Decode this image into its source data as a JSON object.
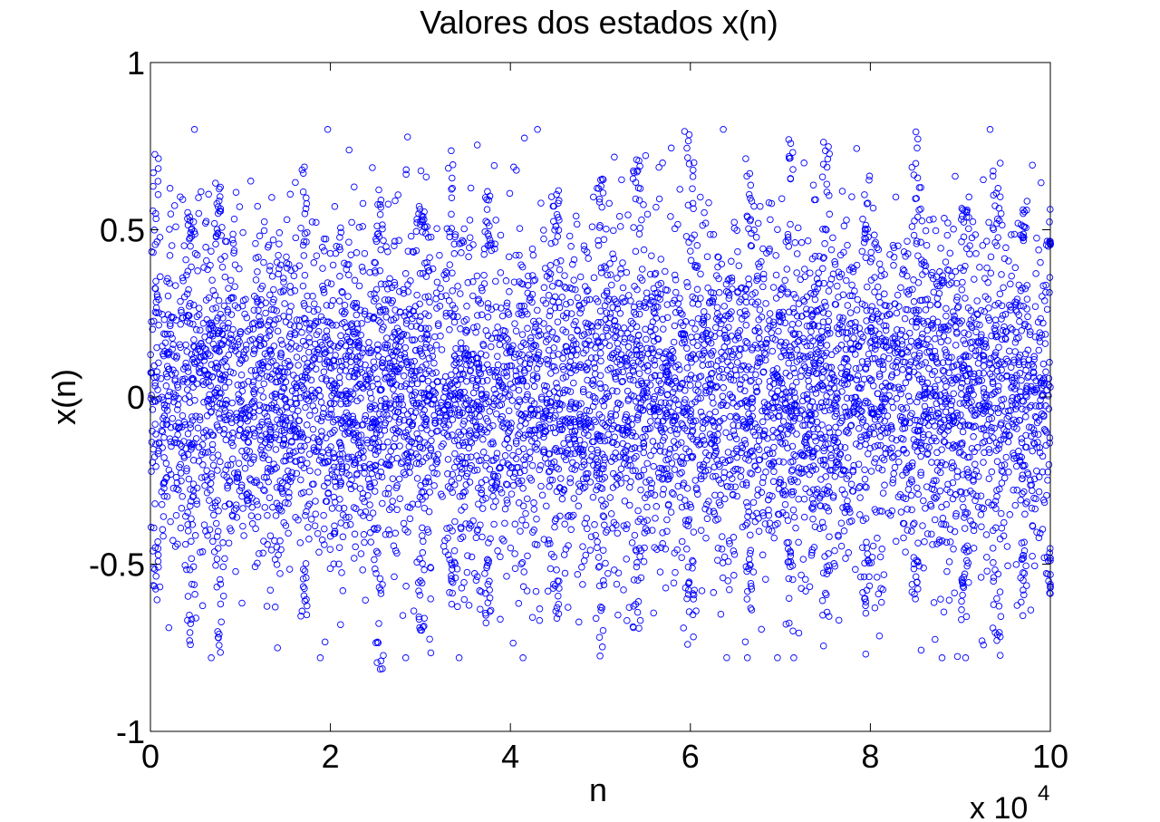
{
  "chart_data": {
    "type": "scatter",
    "title": "Valores dos estados x(n)",
    "xlabel": "n",
    "ylabel": "x(n)",
    "x_multiplier": "x 10",
    "x_multiplier_exponent": "4",
    "xlim": [
      0,
      100000
    ],
    "ylim": [
      -1,
      1
    ],
    "x_tick_labels": [
      "0",
      "2",
      "4",
      "6",
      "8",
      "10"
    ],
    "y_tick_labels": [
      "1",
      "0.5",
      "0",
      "-0.5",
      "-1"
    ],
    "marker": "circle",
    "marker_color": "#0000ff",
    "grid": false,
    "n_points": 100000,
    "approx_bulk_range": [
      -0.5,
      0.5
    ],
    "observed_extremes": {
      "x": [
        0,
        100000
      ],
      "y": [
        -0.82,
        0.83
      ]
    },
    "envelope_peaks": [
      {
        "n": 700,
        "upper": 0.73,
        "lower": -0.62
      },
      {
        "n": 4500,
        "upper": 0.55,
        "lower": -0.79
      },
      {
        "n": 7500,
        "upper": 0.65,
        "lower": -0.77
      },
      {
        "n": 17000,
        "upper": 0.69,
        "lower": -0.66
      },
      {
        "n": 25500,
        "upper": 0.62,
        "lower": -0.82
      },
      {
        "n": 30000,
        "upper": 0.58,
        "lower": -0.73
      },
      {
        "n": 33500,
        "upper": 0.74,
        "lower": -0.62
      },
      {
        "n": 37500,
        "upper": 0.64,
        "lower": -0.7
      },
      {
        "n": 45000,
        "upper": 0.62,
        "lower": -0.66
      },
      {
        "n": 50000,
        "upper": 0.66,
        "lower": -0.78
      },
      {
        "n": 54000,
        "upper": 0.72,
        "lower": -0.7
      },
      {
        "n": 60000,
        "upper": 0.79,
        "lower": -0.75
      },
      {
        "n": 66500,
        "upper": 0.68,
        "lower": -0.64
      },
      {
        "n": 71000,
        "upper": 0.82,
        "lower": -0.7
      },
      {
        "n": 75000,
        "upper": 0.79,
        "lower": -0.76
      },
      {
        "n": 79500,
        "upper": 0.69,
        "lower": -0.66
      },
      {
        "n": 85000,
        "upper": 0.83,
        "lower": -0.61
      },
      {
        "n": 90500,
        "upper": 0.63,
        "lower": -0.68
      },
      {
        "n": 94000,
        "upper": 0.7,
        "lower": -0.78
      },
      {
        "n": 97000,
        "upper": 0.56,
        "lower": -0.66
      },
      {
        "n": 100000,
        "upper": 0.47,
        "lower": -0.61
      }
    ]
  }
}
